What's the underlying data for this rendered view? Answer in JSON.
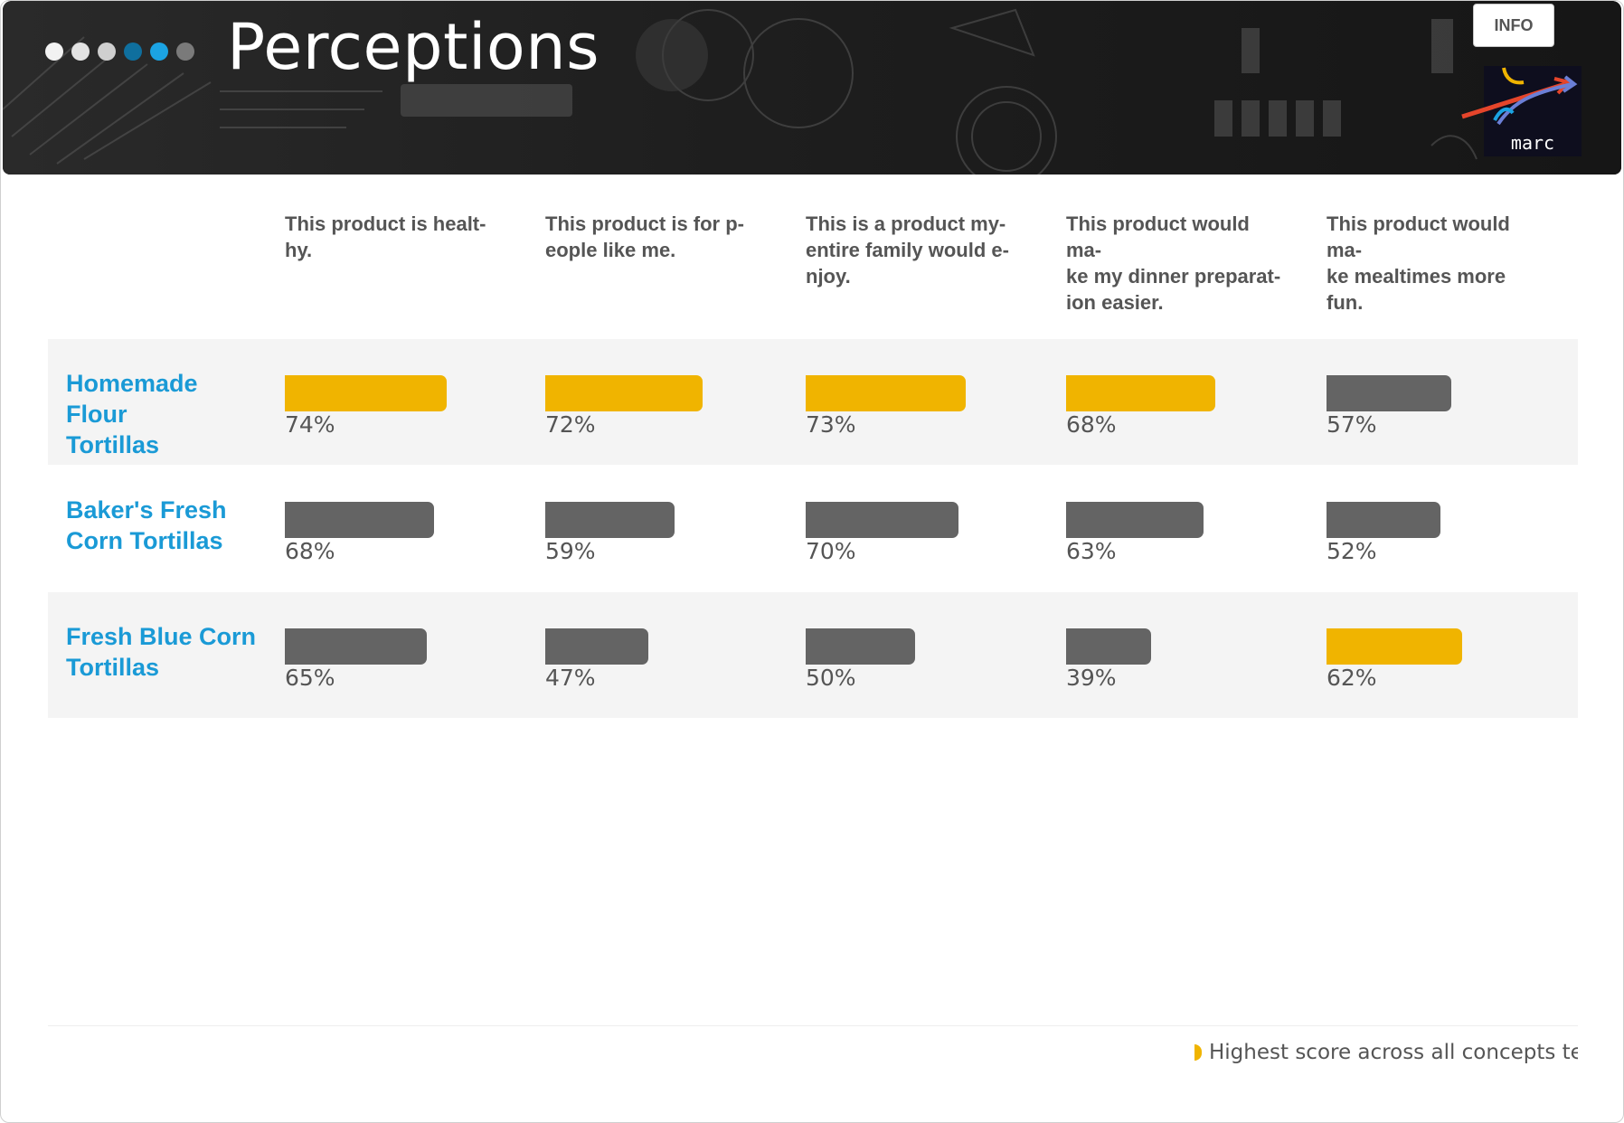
{
  "header": {
    "title": "Perceptions",
    "info_label": "INFO",
    "logo_text": "marc",
    "nav_dots": [
      {
        "color": "#f2f2f2"
      },
      {
        "color": "#e2e2e2"
      },
      {
        "color": "#cfcfcf"
      },
      {
        "color": "#0f6f9e"
      },
      {
        "color": "#1ba3e3"
      },
      {
        "color": "#7a7a7a"
      }
    ]
  },
  "legend": {
    "text": "Highest score across all concepts tested",
    "highlight_color": "#f0b400"
  },
  "colors": {
    "highlight": "#f0b400",
    "default_bar": "#646464",
    "label": "#1a9ad6"
  },
  "chart_data": {
    "type": "bar",
    "categories": [
      "This product is healt-hy.",
      "This product is for p-eople like me.",
      "This is a product my-entire family would e-njoy.",
      "This product would ma-ke my dinner preparat-ion easier.",
      "This product would ma-ke mealtimes more fun."
    ],
    "category_lines": [
      [
        "This product is healt-",
        "hy."
      ],
      [
        "This product is for p-",
        "eople like me."
      ],
      [
        "This is a product my-",
        "entire family would e-",
        "njoy."
      ],
      [
        "This product would ma-",
        "ke my dinner preparat-",
        "ion easier."
      ],
      [
        "This product would ma-",
        "ke mealtimes more fun."
      ]
    ],
    "series": [
      {
        "name_lines": [
          "Homemade Flour",
          "Tortillas"
        ],
        "values": [
          74,
          72,
          73,
          68,
          57
        ],
        "labels": [
          "74%",
          "72%",
          "73%",
          "68%",
          "57%"
        ],
        "highlight": [
          true,
          true,
          true,
          true,
          false
        ]
      },
      {
        "name_lines": [
          "Baker's Fresh",
          "Corn Tortillas"
        ],
        "values": [
          68,
          59,
          70,
          63,
          52
        ],
        "labels": [
          "68%",
          "59%",
          "70%",
          "63%",
          "52%"
        ],
        "highlight": [
          false,
          false,
          false,
          false,
          false
        ]
      },
      {
        "name_lines": [
          "Fresh Blue Corn",
          "Tortillas"
        ],
        "values": [
          65,
          47,
          50,
          39,
          62
        ],
        "labels": [
          "65%",
          "47%",
          "50%",
          "39%",
          "62%"
        ],
        "highlight": [
          false,
          false,
          false,
          false,
          true
        ]
      }
    ],
    "unit": "%",
    "ylim": [
      0,
      100
    ],
    "grid": false
  }
}
